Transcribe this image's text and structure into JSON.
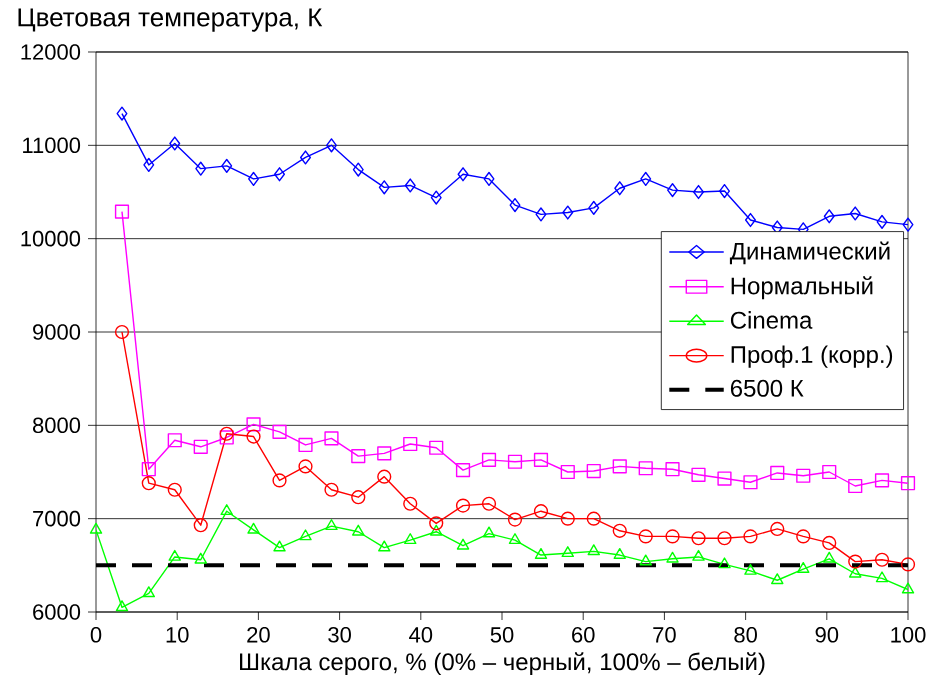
{
  "chart_data": {
    "type": "line",
    "ylabel": "Цветовая температура, К",
    "xlabel": "Шкала серого, % (0% – черный, 100% – белый)",
    "x": [
      0,
      3.2,
      6.5,
      9.7,
      12.9,
      16.1,
      19.4,
      22.6,
      25.8,
      29.0,
      32.3,
      35.5,
      38.7,
      41.9,
      45.2,
      48.4,
      51.6,
      54.8,
      58.1,
      61.3,
      64.5,
      67.7,
      71.0,
      74.2,
      77.4,
      80.6,
      83.9,
      87.1,
      90.3,
      93.5,
      96.8,
      100
    ],
    "series": [
      {
        "name": "Динамический",
        "color": "#0000ff",
        "marker": "diamond",
        "values": [
          null,
          11340,
          10790,
          11020,
          10750,
          10780,
          10640,
          10690,
          10870,
          11000,
          10740,
          10550,
          10570,
          10440,
          10690,
          10640,
          10360,
          10260,
          10280,
          10330,
          10540,
          10640,
          10520,
          10500,
          10510,
          10200,
          10120,
          10100,
          10240,
          10270,
          10180,
          10150
        ]
      },
      {
        "name": "Нормальный",
        "color": "#ff00ff",
        "marker": "square",
        "values": [
          null,
          10290,
          7530,
          7840,
          7770,
          7870,
          8010,
          7930,
          7790,
          7860,
          7670,
          7700,
          7800,
          7760,
          7520,
          7630,
          7610,
          7630,
          7500,
          7510,
          7560,
          7540,
          7530,
          7470,
          7430,
          7390,
          7490,
          7460,
          7500,
          7350,
          7410,
          7380
        ]
      },
      {
        "name": "Cinema",
        "color": "#00ff00",
        "marker": "triangle",
        "values": [
          6880,
          6050,
          6200,
          6590,
          6560,
          7080,
          6880,
          6690,
          6810,
          6920,
          6860,
          6690,
          6770,
          6860,
          6710,
          6840,
          6770,
          6610,
          6630,
          6650,
          6610,
          6540,
          6570,
          6590,
          6510,
          6440,
          6340,
          6460,
          6570,
          6410,
          6360,
          6240
        ]
      },
      {
        "name": "Проф.1 (корр.)",
        "color": "#ff0000",
        "marker": "circle",
        "values": [
          null,
          9000,
          7380,
          7310,
          6930,
          7910,
          7880,
          7410,
          7560,
          7310,
          7230,
          7450,
          7160,
          6950,
          7140,
          7160,
          6990,
          7080,
          7000,
          7000,
          6870,
          6810,
          6810,
          6790,
          6790,
          6810,
          6890,
          6810,
          6740,
          6540,
          6560,
          6510
        ]
      }
    ],
    "ref_lines": [
      {
        "axis": "y",
        "value": 6500,
        "label": "6500 К",
        "color": "#000000",
        "line_style": "dashed"
      }
    ],
    "xlim": [
      0,
      100
    ],
    "ylim": [
      6000,
      12000
    ],
    "xticks": [
      0,
      10,
      20,
      30,
      40,
      50,
      60,
      70,
      80,
      90,
      100
    ],
    "yticks": [
      6000,
      7000,
      8000,
      9000,
      10000,
      11000,
      12000
    ],
    "grid": "y",
    "legend": "right"
  }
}
